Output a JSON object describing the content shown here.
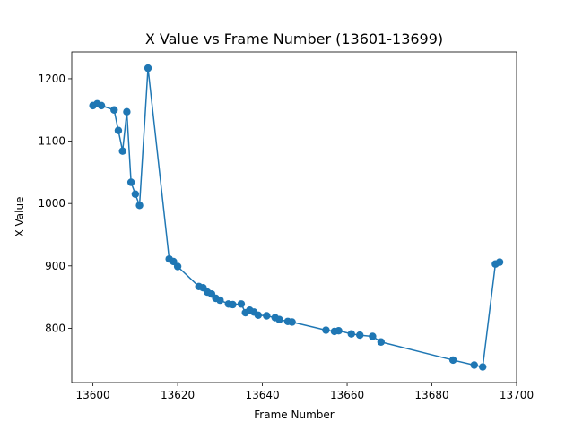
{
  "chart_data": {
    "type": "line",
    "title": "X Value vs Frame Number (13601-13699)",
    "xlabel": "Frame Number",
    "ylabel": "X Value",
    "xlim": [
      13595,
      13700
    ],
    "ylim": [
      713,
      1243
    ],
    "xticks": [
      13600,
      13620,
      13640,
      13660,
      13680,
      13700
    ],
    "yticks": [
      800,
      900,
      1000,
      1100,
      1200
    ],
    "grid": false,
    "legend": "none",
    "color": "#1f77b4",
    "marker": "circle",
    "series": [
      {
        "x": [
          13600,
          13601,
          13602,
          13605,
          13606,
          13607,
          13608,
          13609,
          13610,
          13611,
          13613,
          13618,
          13619,
          13620,
          13625,
          13626,
          13627,
          13628,
          13629,
          13630,
          13632,
          13633,
          13635,
          13636,
          13637,
          13638,
          13639,
          13641,
          13643,
          13644,
          13646,
          13647,
          13655,
          13657,
          13658,
          13661,
          13663,
          13666,
          13668,
          13685,
          13690,
          13692,
          13695,
          13696
        ],
        "y": [
          1157,
          1160,
          1157,
          1150,
          1117,
          1084,
          1147,
          1034,
          1015,
          997,
          1217,
          911,
          907,
          899,
          867,
          865,
          858,
          855,
          848,
          845,
          839,
          838,
          839,
          825,
          829,
          826,
          821,
          820,
          817,
          814,
          811,
          810,
          797,
          795,
          796,
          791,
          789,
          787,
          778,
          749,
          741,
          738,
          903,
          906
        ]
      }
    ]
  }
}
